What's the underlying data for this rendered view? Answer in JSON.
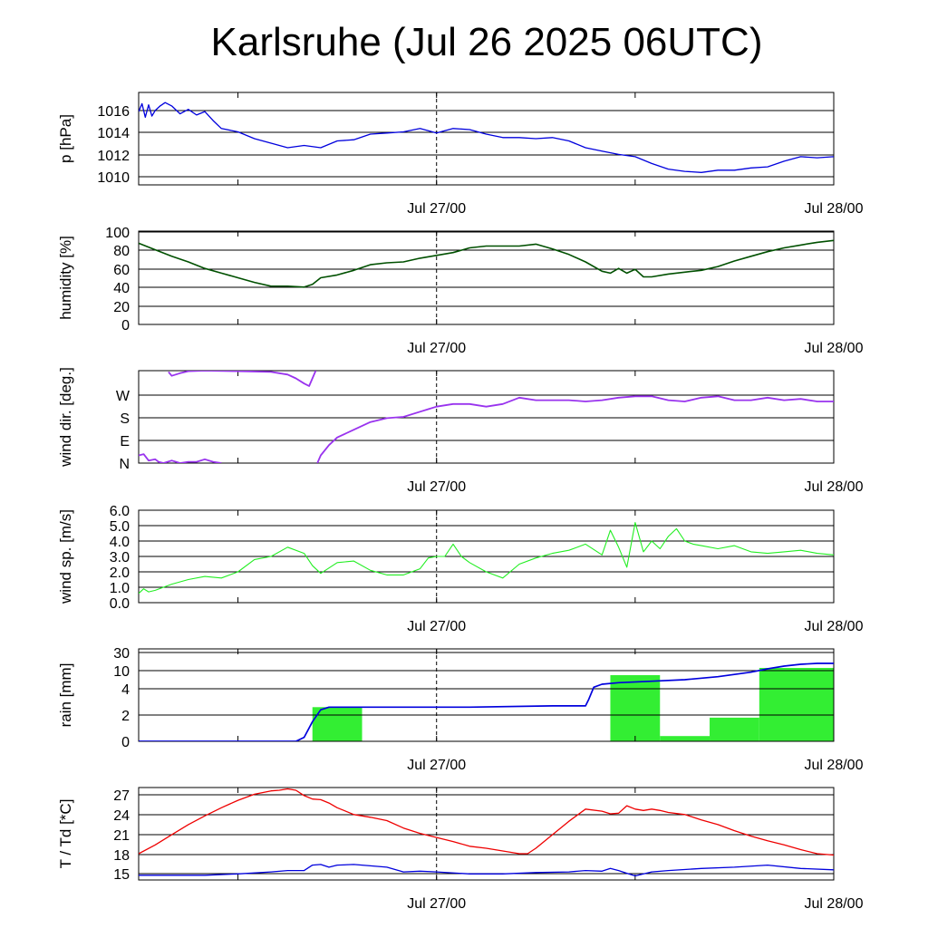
{
  "title": "Karlsruhe (Jul 26 2025 06UTC)",
  "colors": {
    "pressure": "#0000dd",
    "humidity": "#005000",
    "wind_dir": "#9933ee",
    "wind_sp": "#22ee22",
    "rain_bar": "#33ee33",
    "rain_sum": "#0000dd",
    "temperature": "#ee0000",
    "dewpoint": "#0000dd"
  },
  "chart_data": [
    {
      "type": "line",
      "name": "pressure",
      "ylabel": "p [hPa]",
      "x_unit": "hours from Jul 26 06UTC",
      "xlim": [
        0,
        42
      ],
      "ylim": [
        1009.3,
        1017.5
      ],
      "yticks": [
        "1010",
        "1012",
        "1014",
        "1016"
      ],
      "xtick_labels": [
        "Jul 27/00",
        "Jul 28/00"
      ],
      "grid": true,
      "series": [
        {
          "x": [
            0,
            0.2,
            0.4,
            0.6,
            0.8,
            1,
            1.3,
            1.6,
            2,
            2.5,
            3,
            3.5,
            4,
            4.5,
            5,
            6,
            7,
            8,
            9,
            10,
            11,
            12,
            13,
            14,
            15,
            16,
            17,
            18,
            19,
            20,
            21,
            22,
            23,
            24,
            25,
            26,
            27,
            28,
            29,
            30,
            31,
            32,
            33,
            34,
            35,
            36,
            37,
            38,
            39,
            40,
            41,
            42
          ],
          "y": [
            1015.8,
            1016.5,
            1015.3,
            1016.4,
            1015.4,
            1015.9,
            1016.3,
            1016.6,
            1016.3,
            1015.6,
            1016.0,
            1015.5,
            1015.8,
            1015.0,
            1014.3,
            1014.0,
            1013.4,
            1013.0,
            1012.6,
            1012.8,
            1012.6,
            1013.2,
            1013.3,
            1013.8,
            1013.9,
            1014.0,
            1014.3,
            1013.9,
            1014.3,
            1014.2,
            1013.8,
            1013.5,
            1013.5,
            1013.4,
            1013.5,
            1013.2,
            1012.6,
            1012.3,
            1012.0,
            1011.8,
            1011.2,
            1010.7,
            1010.5,
            1010.4,
            1010.6,
            1010.6,
            1010.8,
            1010.9,
            1011.4,
            1011.8,
            1011.7,
            1011.8
          ]
        }
      ]
    },
    {
      "type": "line",
      "name": "humidity",
      "ylabel": "humidity [%]",
      "x_unit": "hours from Jul 26 06UTC",
      "xlim": [
        0,
        42
      ],
      "ylim": [
        0,
        100
      ],
      "yticks": [
        "0",
        "20",
        "40",
        "60",
        "80",
        "100"
      ],
      "xtick_labels": [
        "Jul 27/00",
        "Jul 28/00"
      ],
      "grid": true,
      "series": [
        {
          "x": [
            0,
            1,
            2,
            3,
            4,
            5,
            6,
            7,
            8,
            9,
            10,
            10.5,
            11,
            12,
            13,
            14,
            15,
            16,
            17,
            18,
            19,
            20,
            21,
            22,
            23,
            24,
            25,
            26,
            27,
            28,
            28.5,
            29,
            29.5,
            30,
            30.5,
            31,
            32,
            33,
            34,
            35,
            36,
            37,
            38,
            39,
            40,
            41,
            42
          ],
          "y": [
            87,
            80,
            73,
            67,
            60,
            55,
            50,
            45,
            41,
            41,
            40,
            43,
            50,
            53,
            58,
            64,
            66,
            67,
            71,
            74,
            77,
            82,
            84,
            84,
            84,
            86,
            81,
            75,
            67,
            57,
            55,
            60,
            55,
            59,
            51,
            51,
            54,
            56,
            58,
            62,
            68,
            73,
            78,
            82,
            85,
            88,
            90
          ]
        }
      ]
    },
    {
      "type": "line",
      "name": "wind_dir",
      "ylabel": "wind dir. [deg.]",
      "x_unit": "hours from Jul 26 06UTC",
      "xlim": [
        0,
        42
      ],
      "ylim": [
        0,
        360
      ],
      "yticks": [
        "N",
        "E",
        "S",
        "W"
      ],
      "xtick_labels": [
        "Jul 27/00",
        "Jul 28/00"
      ],
      "grid": true,
      "series": [
        {
          "x": [
            0,
            0.3,
            0.6,
            1,
            1.2,
            1.5,
            2,
            2.5,
            3,
            3.5,
            4,
            4.5,
            5
          ],
          "y": [
            30,
            35,
            10,
            15,
            5,
            0,
            10,
            0,
            5,
            5,
            15,
            5,
            0
          ]
        },
        {
          "x": [
            1.8,
            2,
            2.5,
            3,
            4,
            6,
            8,
            9,
            9.5,
            10,
            10.3,
            10.7
          ],
          "y": [
            355,
            340,
            350,
            358,
            360,
            358,
            355,
            345,
            330,
            310,
            300,
            360
          ]
        },
        {
          "x": [
            10.8,
            11,
            11.5,
            12,
            13,
            14,
            15,
            16,
            17,
            17.5,
            18,
            19,
            20,
            21,
            22,
            23,
            24,
            25,
            26,
            27,
            28,
            29,
            30,
            31,
            32,
            33,
            34,
            35,
            36,
            37,
            38,
            39,
            40,
            41,
            42
          ],
          "y": [
            0,
            30,
            70,
            100,
            130,
            160,
            175,
            180,
            200,
            210,
            220,
            230,
            230,
            220,
            230,
            255,
            245,
            245,
            245,
            240,
            245,
            255,
            260,
            260,
            245,
            240,
            255,
            260,
            245,
            245,
            255,
            245,
            250,
            240,
            240
          ]
        }
      ]
    },
    {
      "type": "line",
      "name": "wind_sp",
      "ylabel": "wind sp. [m/s]",
      "x_unit": "hours from Jul 26 06UTC",
      "xlim": [
        0,
        42
      ],
      "ylim": [
        0,
        6
      ],
      "yticks": [
        "0.0",
        "1.0",
        "2.0",
        "3.0",
        "4.0",
        "5.0",
        "6.0"
      ],
      "xtick_labels": [
        "Jul 27/00",
        "Jul 28/00"
      ],
      "grid": true,
      "series": [
        {
          "x": [
            0,
            0.3,
            0.6,
            1,
            1.5,
            2,
            3,
            4,
            5,
            6,
            7,
            8,
            9,
            10,
            10.5,
            11,
            12,
            13,
            14,
            15,
            16,
            17,
            17.5,
            18,
            18.5,
            19,
            19.5,
            20,
            21,
            22,
            23,
            24,
            25,
            26,
            27,
            28,
            28.5,
            29,
            29.5,
            30,
            30.5,
            31,
            31.5,
            32,
            32.5,
            33,
            33.5,
            34,
            35,
            36,
            37,
            38,
            39,
            40,
            41,
            42
          ],
          "y": [
            0.6,
            0.9,
            0.7,
            0.8,
            1.0,
            1.2,
            1.5,
            1.7,
            1.6,
            2.0,
            2.8,
            3.0,
            3.6,
            3.2,
            2.4,
            1.9,
            2.6,
            2.7,
            2.1,
            1.8,
            1.8,
            2.2,
            2.9,
            3.0,
            3.0,
            3.8,
            3.0,
            2.6,
            2.0,
            1.6,
            2.5,
            2.9,
            3.2,
            3.4,
            3.8,
            3.1,
            4.7,
            3.6,
            2.3,
            5.2,
            3.3,
            4.0,
            3.5,
            4.3,
            4.8,
            4.0,
            3.8,
            3.7,
            3.5,
            3.7,
            3.3,
            3.2,
            3.3,
            3.4,
            3.2,
            3.1
          ]
        }
      ]
    },
    {
      "type": "bar",
      "name": "rain",
      "ylabel": "rain [mm]",
      "x_unit": "hours from Jul 26 06UTC",
      "xlim": [
        0,
        42
      ],
      "yticks": [
        "0",
        "2",
        "4",
        "10",
        "30"
      ],
      "y_scale": "nonlinear",
      "xtick_labels": [
        "Jul 27/00",
        "Jul 28/00"
      ],
      "grid": true,
      "bars": [
        {
          "x0": 10.5,
          "x1": 13.5,
          "value": 2.6
        },
        {
          "x0": 28.5,
          "x1": 31.5,
          "value": 8.5
        },
        {
          "x0": 31.5,
          "x1": 34.5,
          "value": 0.4
        },
        {
          "x0": 34.5,
          "x1": 37.5,
          "value": 1.8
        },
        {
          "x0": 37.5,
          "x1": 42,
          "value": 13.0
        }
      ],
      "series": [
        {
          "x": [
            0,
            9,
            9.5,
            10,
            10.5,
            11,
            11.5,
            12,
            15,
            20,
            25,
            27,
            27.2,
            27.5,
            28,
            29,
            31,
            33,
            35,
            37,
            38,
            39,
            40,
            41,
            42
          ],
          "y": [
            0,
            0,
            0,
            0.3,
            1.5,
            2.4,
            2.6,
            2.6,
            2.6,
            2.6,
            2.7,
            2.7,
            3.2,
            4.5,
            5.5,
            6.0,
            6.5,
            7.0,
            8.0,
            9.5,
            12.0,
            15.0,
            17.0,
            18.0,
            18.0
          ]
        }
      ]
    },
    {
      "type": "line",
      "name": "temperature",
      "ylabel": "T / Td [*C]",
      "x_unit": "hours from Jul 26 06UTC",
      "xlim": [
        0,
        42
      ],
      "ylim": [
        14.3,
        28
      ],
      "yticks": [
        "15",
        "18",
        "21",
        "24",
        "27"
      ],
      "xtick_labels": [
        "Jul 27/00",
        "Jul 28/00"
      ],
      "grid": true,
      "series": [
        {
          "x": [
            0,
            1,
            2,
            3,
            4,
            5,
            6,
            7,
            8,
            8.5,
            9,
            9.5,
            10,
            10.5,
            11,
            11.5,
            12,
            13,
            14,
            15,
            16,
            17,
            18,
            19,
            20,
            21,
            22,
            23,
            23.5,
            24,
            25,
            26,
            27,
            28,
            28.5,
            29,
            29.5,
            30,
            30.5,
            31,
            31.5,
            32,
            33,
            34,
            35,
            36,
            37,
            38,
            39,
            40,
            41,
            42
          ],
          "y": [
            18.2,
            19.5,
            21.0,
            22.5,
            23.8,
            25.0,
            26.1,
            27.0,
            27.5,
            27.6,
            27.8,
            27.6,
            26.8,
            26.3,
            26.2,
            25.7,
            25.0,
            24.0,
            23.6,
            23.1,
            22.0,
            21.2,
            20.6,
            20.0,
            19.3,
            19.0,
            18.6,
            18.2,
            18.2,
            19.0,
            21.0,
            23.0,
            24.8,
            24.5,
            24.1,
            24.2,
            25.3,
            24.8,
            24.6,
            24.8,
            24.6,
            24.3,
            24.0,
            23.2,
            22.5,
            21.6,
            20.8,
            20.1,
            19.5,
            18.8,
            18.2,
            18.0
          ]
        },
        {
          "x": [
            0,
            2,
            4,
            6,
            8,
            9,
            10,
            10.5,
            11,
            11.5,
            12,
            13,
            14,
            15,
            16,
            17,
            18,
            20,
            22,
            24,
            26,
            27,
            28,
            28.5,
            29,
            29.5,
            30,
            31,
            32,
            34,
            36,
            38,
            40,
            42
          ],
          "y": [
            15.0,
            15.0,
            15.0,
            15.2,
            15.5,
            15.7,
            15.7,
            16.5,
            16.6,
            16.2,
            16.5,
            16.6,
            16.4,
            16.2,
            15.5,
            15.6,
            15.5,
            15.2,
            15.2,
            15.4,
            15.5,
            15.7,
            15.6,
            16.0,
            15.7,
            15.3,
            14.9,
            15.5,
            15.7,
            16.0,
            16.2,
            16.5,
            16.0,
            15.8
          ]
        }
      ]
    }
  ]
}
